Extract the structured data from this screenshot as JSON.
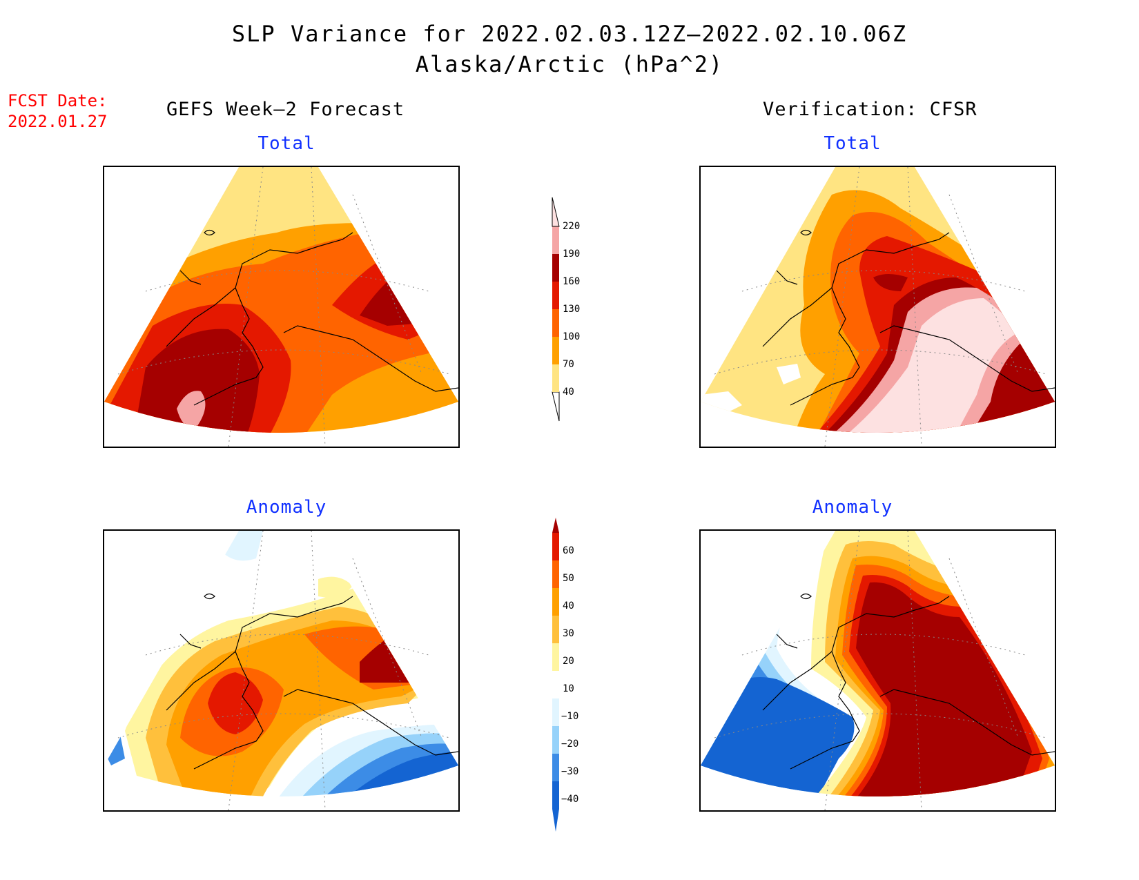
{
  "title": "SLP Variance for 2022.02.03.12Z–2022.02.10.06Z",
  "subtitle": "Alaska/Arctic (hPa^2)",
  "fcst_date": {
    "label": "FCST Date:",
    "value": "2022.01.27"
  },
  "left_heading": "GEFS Week–2 Forecast",
  "right_heading": "Verification: CFSR",
  "panels": {
    "forecast_total": {
      "label": "Total"
    },
    "verification_total": {
      "label": "Total"
    },
    "forecast_anomaly": {
      "label": "Anomaly"
    },
    "verification_anomaly": {
      "label": "Anomaly"
    }
  },
  "total_colorbar": {
    "ticks": [
      "40",
      "70",
      "100",
      "130",
      "160",
      "190",
      "220"
    ],
    "colors": [
      "#ffe482",
      "#ffa000",
      "#ff6400",
      "#e41800",
      "#a50000",
      "#f5a5a5",
      "#fde1e1"
    ]
  },
  "anomaly_colorbar": {
    "ticks": [
      "−40",
      "−30",
      "−20",
      "−10",
      "10",
      "20",
      "30",
      "40",
      "50",
      "60"
    ],
    "colors": [
      "#1464d2",
      "#3c8ce6",
      "#96d2fa",
      "#e1f5ff",
      "#ffffff",
      "#fff5a0",
      "#ffc03c",
      "#ffa000",
      "#ff6400",
      "#e41800",
      "#a50000"
    ]
  }
}
